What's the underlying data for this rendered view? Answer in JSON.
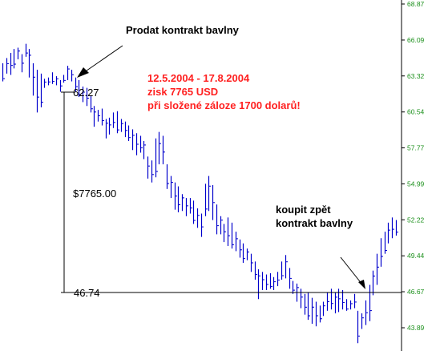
{
  "chart_data": {
    "type": "ohlc",
    "title": "",
    "xlabel": "",
    "ylabel": "",
    "y_axis_position": "right",
    "ylim": [
      43.3,
      69.3
    ],
    "y_ticks": [
      "68.87",
      "66.09",
      "63.32",
      "60.54",
      "57.77",
      "54.99",
      "52.22",
      "49.44",
      "46.67",
      "43.89"
    ],
    "y_tick_values": [
      68.87,
      66.09,
      63.32,
      60.54,
      57.77,
      54.99,
      52.22,
      49.44,
      46.67,
      43.89
    ],
    "bars_high_low": [
      [
        64.3,
        62.9
      ],
      [
        64.7,
        63.5
      ],
      [
        65.1,
        63.4
      ],
      [
        65.4,
        63.9
      ],
      [
        65.5,
        64.6
      ],
      [
        65.0,
        63.6
      ],
      [
        65.8,
        64.8
      ],
      [
        65.4,
        63.2
      ],
      [
        64.3,
        61.8
      ],
      [
        63.8,
        60.5
      ],
      [
        63.5,
        60.9
      ],
      [
        63.1,
        62.4
      ],
      [
        63.2,
        62.6
      ],
      [
        63.6,
        62.7
      ],
      [
        63.3,
        62.6
      ],
      [
        63.0,
        62.1
      ],
      [
        63.4,
        62.8
      ],
      [
        64.1,
        63.0
      ],
      [
        63.8,
        62.9
      ],
      [
        63.2,
        62.1
      ],
      [
        63.0,
        61.7
      ],
      [
        62.5,
        61.3
      ],
      [
        62.4,
        61.0
      ],
      [
        61.8,
        60.5
      ],
      [
        61.0,
        59.4
      ],
      [
        60.7,
        59.8
      ],
      [
        60.8,
        59.5
      ],
      [
        60.0,
        58.5
      ],
      [
        60.1,
        58.8
      ],
      [
        60.5,
        59.3
      ],
      [
        60.6,
        58.9
      ],
      [
        60.0,
        59.0
      ],
      [
        59.8,
        58.6
      ],
      [
        59.5,
        58.3
      ],
      [
        59.2,
        57.6
      ],
      [
        58.9,
        57.2
      ],
      [
        58.7,
        57.4
      ],
      [
        58.3,
        56.9
      ],
      [
        57.1,
        55.4
      ],
      [
        56.8,
        55.1
      ],
      [
        58.5,
        55.5
      ],
      [
        59.0,
        56.5
      ],
      [
        58.7,
        56.5
      ],
      [
        56.5,
        54.6
      ],
      [
        55.6,
        53.9
      ],
      [
        55.1,
        53.0
      ],
      [
        54.8,
        52.8
      ],
      [
        54.2,
        52.9
      ],
      [
        53.9,
        52.5
      ],
      [
        53.9,
        52.7
      ],
      [
        53.7,
        51.9
      ],
      [
        53.1,
        51.6
      ],
      [
        52.7,
        50.9
      ],
      [
        55.0,
        52.5
      ],
      [
        55.6,
        52.9
      ],
      [
        54.9,
        52.2
      ],
      [
        53.4,
        51.1
      ],
      [
        52.5,
        51.1
      ],
      [
        51.9,
        50.5
      ],
      [
        52.4,
        50.2
      ],
      [
        52.0,
        50.0
      ],
      [
        51.3,
        49.8
      ],
      [
        50.7,
        49.3
      ],
      [
        50.4,
        48.9
      ],
      [
        50.0,
        49.1
      ],
      [
        49.6,
        48.2
      ],
      [
        49.0,
        47.6
      ],
      [
        48.4,
        46.1
      ],
      [
        48.2,
        46.8
      ],
      [
        48.0,
        46.8
      ],
      [
        48.1,
        46.9
      ],
      [
        47.8,
        46.8
      ],
      [
        48.2,
        47.1
      ],
      [
        49.0,
        47.6
      ],
      [
        49.5,
        47.7
      ],
      [
        48.5,
        46.9
      ],
      [
        47.5,
        46.5
      ],
      [
        47.3,
        45.9
      ],
      [
        46.9,
        45.4
      ],
      [
        46.5,
        44.9
      ],
      [
        46.6,
        44.5
      ],
      [
        46.2,
        44.2
      ],
      [
        45.9,
        44.0
      ],
      [
        45.6,
        44.3
      ],
      [
        45.9,
        44.8
      ],
      [
        46.6,
        45.2
      ],
      [
        46.9,
        45.3
      ],
      [
        46.6,
        45.0
      ],
      [
        46.9,
        45.1
      ],
      [
        46.8,
        45.3
      ],
      [
        46.1,
        45.2
      ],
      [
        46.0,
        45.3
      ],
      [
        46.5,
        45.4
      ],
      [
        45.2,
        42.7
      ],
      [
        45.0,
        43.8
      ],
      [
        46.0,
        44.1
      ],
      [
        47.2,
        44.4
      ],
      [
        48.3,
        46.4
      ],
      [
        49.6,
        47.2
      ],
      [
        50.8,
        48.6
      ],
      [
        51.3,
        49.6
      ],
      [
        52.0,
        50.4
      ],
      [
        52.4,
        50.8
      ],
      [
        52.2,
        51.0
      ]
    ],
    "annotations": {
      "sell_label": "Prodat kontrakt bavlny",
      "period": "12.5.2004 - 17.8.2004",
      "profit": "zisk 7765 USD",
      "margin": "při složené záloze 1700 dolarů!",
      "buy_line_1": "koupit zpět",
      "buy_line_2": "kontrakt bavlny",
      "entry_price": "62.27",
      "exit_price": "46.74",
      "difference": "$7765.00"
    },
    "levels": [
      62.27,
      46.74
    ],
    "colors": {
      "bars": "#0000cc",
      "axis_labels": "#1a8f1a",
      "profit_text": "#ff2020",
      "annotation_text": "#000000"
    },
    "grid": false,
    "legend": "none"
  }
}
